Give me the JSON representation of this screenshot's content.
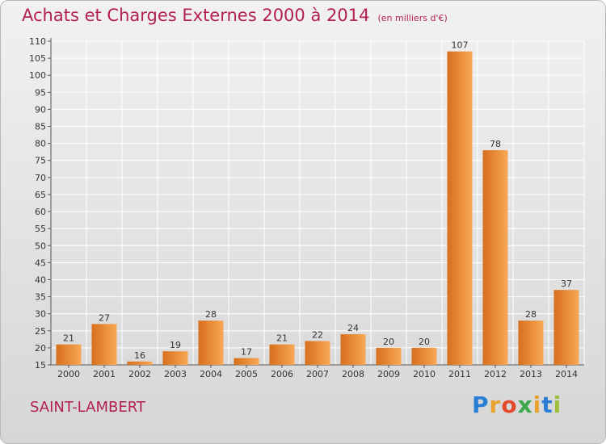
{
  "title": "Achats et Charges Externes 2000 à 2014",
  "subtitle": "(en milliers d'€)",
  "commune": "SAINT-LAMBERT",
  "brand": {
    "letters": [
      "P",
      "r",
      "o",
      "x",
      "i",
      "t",
      "i"
    ],
    "colors": [
      "#2a7fd4",
      "#e8a12c",
      "#e24a2b",
      "#3ca84a",
      "#e8a12c",
      "#2a7fd4",
      "#9dc03a"
    ]
  },
  "colors": {
    "bar_light": "#f7a955",
    "bar_dark": "#d86f1c",
    "title": "#b3214f",
    "grid": "#ffffff"
  },
  "chart_data": {
    "type": "bar",
    "categories": [
      "2000",
      "2001",
      "2002",
      "2003",
      "2004",
      "2005",
      "2006",
      "2007",
      "2008",
      "2009",
      "2010",
      "2011",
      "2012",
      "2013",
      "2014"
    ],
    "values": [
      21,
      27,
      16,
      19,
      28,
      17,
      21,
      22,
      24,
      20,
      20,
      107,
      78,
      28,
      37
    ],
    "ylim": [
      15,
      110
    ],
    "yticks": [
      15,
      20,
      25,
      30,
      35,
      40,
      45,
      50,
      55,
      60,
      65,
      70,
      75,
      80,
      85,
      90,
      95,
      100,
      105,
      110
    ],
    "grid": true,
    "legend": "none"
  }
}
